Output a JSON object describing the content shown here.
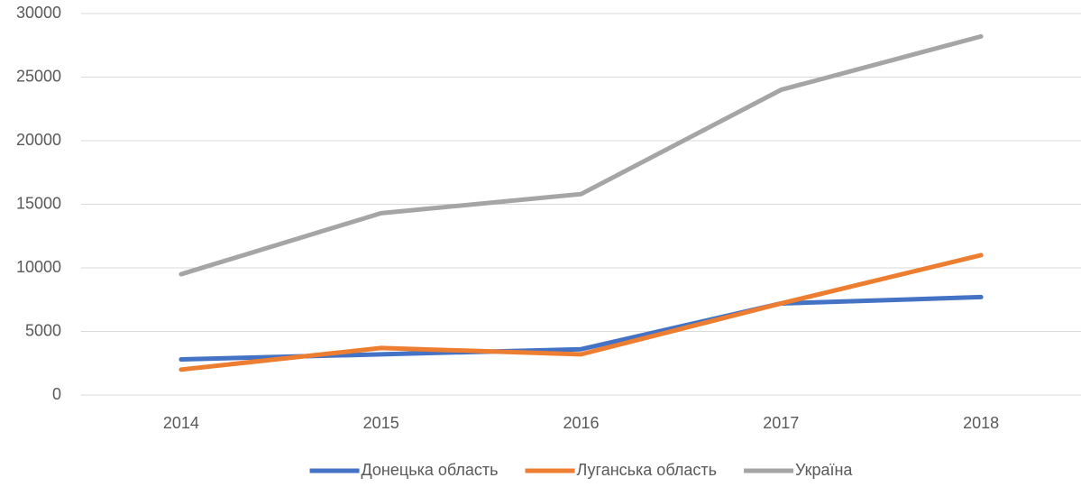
{
  "chart_data": {
    "type": "line",
    "categories": [
      "2014",
      "2015",
      "2016",
      "2017",
      "2018"
    ],
    "series": [
      {
        "name": "Донецька область",
        "color": "#4472c4",
        "values": [
          2800,
          3200,
          3600,
          7200,
          7700
        ]
      },
      {
        "name": "Луганська область",
        "color": "#ed7d31",
        "values": [
          2000,
          3700,
          3200,
          7200,
          11000
        ]
      },
      {
        "name": "Україна",
        "color": "#a5a5a5",
        "values": [
          9500,
          14300,
          15800,
          24000,
          28200
        ]
      }
    ],
    "ylim": [
      0,
      30000
    ],
    "yticks": [
      0,
      5000,
      10000,
      15000,
      20000,
      25000,
      30000
    ],
    "grid": true,
    "legend": "bottom"
  }
}
